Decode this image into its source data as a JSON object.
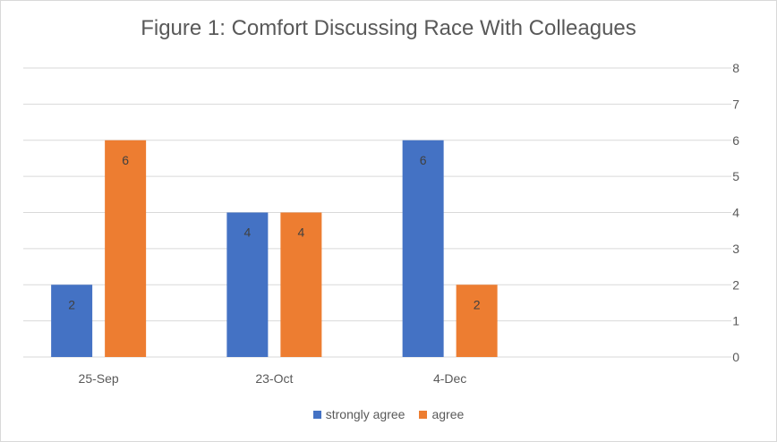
{
  "chart_data": {
    "type": "bar",
    "title": "Figure 1: Comfort Discussing Race With Colleagues",
    "categories": [
      "25-Sep",
      "23-Oct",
      "4-Dec"
    ],
    "series": [
      {
        "name": "strongly agree",
        "values": [
          2,
          4,
          6
        ],
        "color": "#4472C4"
      },
      {
        "name": "agree",
        "values": [
          6,
          4,
          2
        ],
        "color": "#ED7D31"
      }
    ],
    "ylim": [
      0,
      8
    ],
    "yticks": [
      0,
      1,
      2,
      3,
      4,
      5,
      6,
      7,
      8
    ],
    "y_axis_side": "right",
    "grid": true,
    "legend_position": "bottom",
    "data_labels": true
  }
}
